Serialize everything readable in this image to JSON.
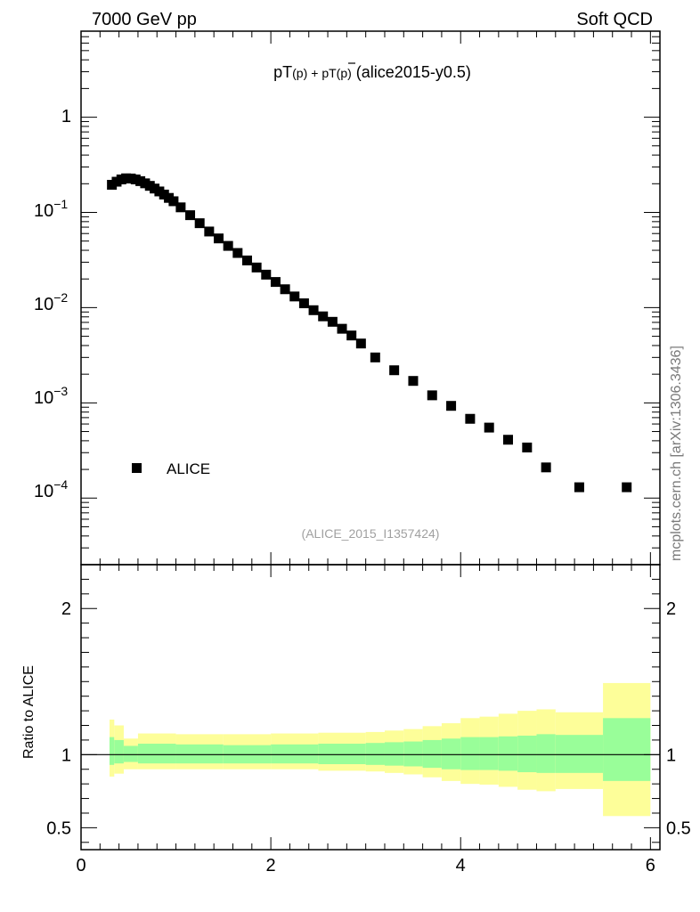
{
  "header": {
    "left": "7000 GeV pp",
    "right": "Soft QCD"
  },
  "side_label": "mcplots.cern.ch [arXiv:1306.3436]",
  "colors": {
    "band_inner": "#99fe99",
    "band_outer": "#fdfe99",
    "marker": "#000000"
  },
  "chart_data": [
    {
      "type": "scatter",
      "title_main": "pT",
      "title_p": "(p)",
      "title_plus": "+ pT",
      "title_pbar": "(p)",
      "title_tag": "(alice2015-y0.5)",
      "analysis": "(ALICE_2015_I1357424)",
      "legend": [
        "ALICE"
      ],
      "xlim": [
        0,
        6.1
      ],
      "ylim": [
        2e-05,
        8
      ],
      "yscale": "log",
      "ytick_labels": [
        {
          "base": "1",
          "exp": ""
        },
        {
          "base": "10",
          "exp": "−1"
        },
        {
          "base": "10",
          "exp": "−2"
        },
        {
          "base": "10",
          "exp": "−3"
        },
        {
          "base": "10",
          "exp": "−4"
        }
      ],
      "series": [
        {
          "name": "ALICE",
          "x": [
            0.325,
            0.375,
            0.425,
            0.475,
            0.525,
            0.575,
            0.625,
            0.675,
            0.725,
            0.775,
            0.825,
            0.875,
            0.925,
            0.975,
            1.05,
            1.15,
            1.25,
            1.35,
            1.45,
            1.55,
            1.65,
            1.75,
            1.85,
            1.95,
            2.05,
            2.15,
            2.25,
            2.35,
            2.45,
            2.55,
            2.65,
            2.75,
            2.85,
            2.95,
            3.1,
            3.3,
            3.5,
            3.7,
            3.9,
            4.1,
            4.3,
            4.5,
            4.7,
            4.9,
            5.25,
            5.75
          ],
          "y": [
            0.195,
            0.21,
            0.222,
            0.228,
            0.227,
            0.222,
            0.213,
            0.202,
            0.19,
            0.178,
            0.166,
            0.154,
            0.142,
            0.131,
            0.113,
            0.0935,
            0.077,
            0.063,
            0.0533,
            0.0445,
            0.0375,
            0.0313,
            0.0264,
            0.0222,
            0.0186,
            0.0156,
            0.0131,
            0.0111,
            0.0094,
            0.0081,
            0.0071,
            0.006,
            0.0051,
            0.0042,
            0.003,
            0.0022,
            0.0017,
            0.0012,
            0.00093,
            0.00068,
            0.00055,
            0.00041,
            0.00034,
            0.00021,
            0.00013,
            0.00013
          ]
        }
      ]
    },
    {
      "type": "area",
      "ylabel": "Ratio to ALICE",
      "xlim": [
        0,
        6.1
      ],
      "ylim": [
        0.35,
        2.3
      ],
      "x_ticks": [
        0,
        2,
        4,
        6
      ],
      "y_ticks": [
        0.5,
        1,
        2
      ],
      "bins": [
        {
          "lo": 0.3,
          "hi": 0.35,
          "in_lo": 0.93,
          "in_hi": 1.12,
          "out_lo": 0.85,
          "out_hi": 1.24
        },
        {
          "lo": 0.35,
          "hi": 0.45,
          "in_lo": 0.94,
          "in_hi": 1.1,
          "out_lo": 0.87,
          "out_hi": 1.2
        },
        {
          "lo": 0.45,
          "hi": 0.6,
          "in_lo": 0.95,
          "in_hi": 1.06,
          "out_lo": 0.9,
          "out_hi": 1.11
        },
        {
          "lo": 0.6,
          "hi": 1.0,
          "in_lo": 0.94,
          "in_hi": 1.075,
          "out_lo": 0.9,
          "out_hi": 1.145
        },
        {
          "lo": 1.0,
          "hi": 1.5,
          "in_lo": 0.94,
          "in_hi": 1.07,
          "out_lo": 0.9,
          "out_hi": 1.14
        },
        {
          "lo": 1.5,
          "hi": 2.0,
          "in_lo": 0.94,
          "in_hi": 1.065,
          "out_lo": 0.9,
          "out_hi": 1.14
        },
        {
          "lo": 2.0,
          "hi": 2.5,
          "in_lo": 0.94,
          "in_hi": 1.07,
          "out_lo": 0.9,
          "out_hi": 1.145
        },
        {
          "lo": 2.5,
          "hi": 3.0,
          "in_lo": 0.935,
          "in_hi": 1.075,
          "out_lo": 0.89,
          "out_hi": 1.15
        },
        {
          "lo": 3.0,
          "hi": 3.2,
          "in_lo": 0.93,
          "in_hi": 1.08,
          "out_lo": 0.885,
          "out_hi": 1.155
        },
        {
          "lo": 3.2,
          "hi": 3.4,
          "in_lo": 0.925,
          "in_hi": 1.085,
          "out_lo": 0.875,
          "out_hi": 1.165
        },
        {
          "lo": 3.4,
          "hi": 3.6,
          "in_lo": 0.92,
          "in_hi": 1.09,
          "out_lo": 0.865,
          "out_hi": 1.175
        },
        {
          "lo": 3.6,
          "hi": 3.8,
          "in_lo": 0.91,
          "in_hi": 1.1,
          "out_lo": 0.845,
          "out_hi": 1.195
        },
        {
          "lo": 3.8,
          "hi": 4.0,
          "in_lo": 0.9,
          "in_hi": 1.11,
          "out_lo": 0.82,
          "out_hi": 1.215
        },
        {
          "lo": 4.0,
          "hi": 4.2,
          "in_lo": 0.895,
          "in_hi": 1.12,
          "out_lo": 0.8,
          "out_hi": 1.25
        },
        {
          "lo": 4.2,
          "hi": 4.4,
          "in_lo": 0.895,
          "in_hi": 1.12,
          "out_lo": 0.795,
          "out_hi": 1.26
        },
        {
          "lo": 4.4,
          "hi": 4.6,
          "in_lo": 0.89,
          "in_hi": 1.125,
          "out_lo": 0.78,
          "out_hi": 1.28
        },
        {
          "lo": 4.6,
          "hi": 4.8,
          "in_lo": 0.88,
          "in_hi": 1.13,
          "out_lo": 0.76,
          "out_hi": 1.3
        },
        {
          "lo": 4.8,
          "hi": 5.0,
          "in_lo": 0.875,
          "in_hi": 1.14,
          "out_lo": 0.75,
          "out_hi": 1.31
        },
        {
          "lo": 5.0,
          "hi": 5.5,
          "in_lo": 0.875,
          "in_hi": 1.135,
          "out_lo": 0.765,
          "out_hi": 1.29
        },
        {
          "lo": 5.5,
          "hi": 6.0,
          "in_lo": 0.82,
          "in_hi": 1.25,
          "out_lo": 0.58,
          "out_hi": 1.49
        }
      ]
    }
  ]
}
